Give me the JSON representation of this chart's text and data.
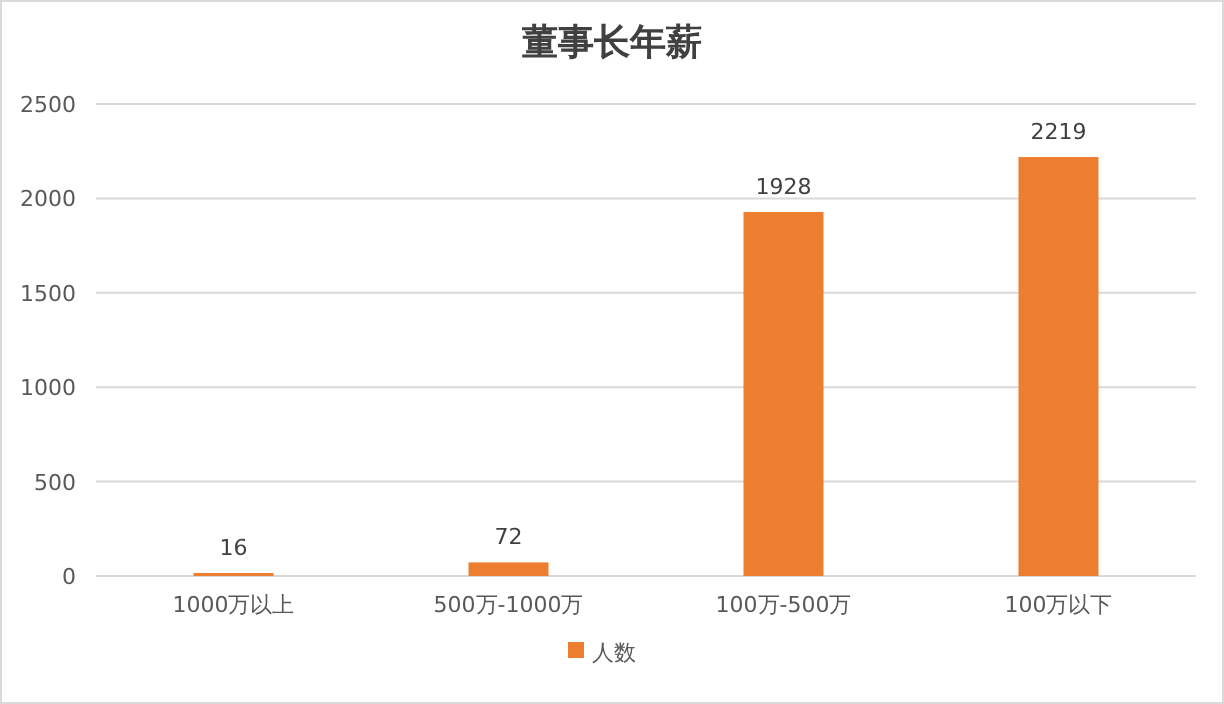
{
  "chart_data": {
    "type": "bar",
    "title": "董事长年薪",
    "categories": [
      "1000万以上",
      "500万-1000万",
      "100万-500万",
      "100万以下"
    ],
    "series": [
      {
        "name": "人数",
        "color": "#ed7d31",
        "values": [
          16,
          72,
          1928,
          2219
        ]
      }
    ],
    "ylim": [
      0,
      2500
    ],
    "yticks": [
      0,
      500,
      1000,
      1500,
      2000,
      2500
    ],
    "grid": "y",
    "legend": "bottom",
    "data_labels": true
  }
}
